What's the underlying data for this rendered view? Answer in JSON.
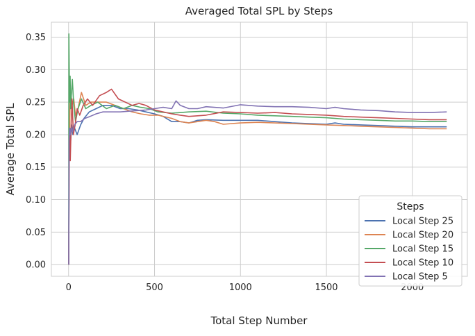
{
  "chart_data": {
    "type": "line",
    "title": "Averaged Total SPL by Steps",
    "xlabel": "Total Step Number",
    "ylabel": "Average Total SPL",
    "xlim": [
      -100,
      2320
    ],
    "ylim": [
      -0.018,
      0.373
    ],
    "xticks": [
      0,
      500,
      1000,
      1500,
      2000
    ],
    "yticks": [
      0.0,
      0.05,
      0.1,
      0.15,
      0.2,
      0.25,
      0.3,
      0.35
    ],
    "xtick_labels": [
      "0",
      "500",
      "1000",
      "1500",
      "2000"
    ],
    "ytick_labels": [
      "0.00",
      "0.05",
      "0.10",
      "0.15",
      "0.20",
      "0.25",
      "0.30",
      "0.35"
    ],
    "grid": true,
    "legend": {
      "title": "Steps",
      "position": "lower-right"
    },
    "series": [
      {
        "name": "Local Step 25",
        "color": "#4c72b0",
        "x": [
          1,
          3,
          5,
          8,
          12,
          18,
          25,
          35,
          50,
          70,
          90,
          120,
          160,
          200,
          250,
          300,
          350,
          400,
          450,
          500,
          550,
          600,
          650,
          700,
          750,
          800,
          900,
          1000,
          1100,
          1200,
          1300,
          1400,
          1500,
          1550,
          1600,
          1700,
          1800,
          1900,
          2000,
          2100,
          2200
        ],
        "y": [
          0.0,
          0.14,
          0.18,
          0.21,
          0.19,
          0.215,
          0.2,
          0.21,
          0.2,
          0.215,
          0.225,
          0.235,
          0.24,
          0.245,
          0.245,
          0.24,
          0.24,
          0.238,
          0.235,
          0.232,
          0.228,
          0.22,
          0.22,
          0.218,
          0.222,
          0.223,
          0.222,
          0.222,
          0.222,
          0.22,
          0.218,
          0.217,
          0.216,
          0.218,
          0.216,
          0.215,
          0.214,
          0.213,
          0.212,
          0.212,
          0.212
        ]
      },
      {
        "name": "Local Step 20",
        "color": "#dd8452",
        "x": [
          1,
          3,
          6,
          10,
          15,
          20,
          30,
          40,
          55,
          75,
          100,
          130,
          170,
          220,
          270,
          320,
          370,
          420,
          470,
          520,
          600,
          650,
          700,
          750,
          800,
          850,
          900,
          1000,
          1100,
          1200,
          1300,
          1400,
          1500,
          1600,
          1700,
          1800,
          1900,
          2000,
          2100,
          2200
        ],
        "y": [
          0.0,
          0.15,
          0.2,
          0.265,
          0.26,
          0.245,
          0.255,
          0.23,
          0.24,
          0.265,
          0.245,
          0.25,
          0.25,
          0.25,
          0.245,
          0.24,
          0.235,
          0.232,
          0.23,
          0.23,
          0.225,
          0.22,
          0.218,
          0.22,
          0.222,
          0.22,
          0.216,
          0.218,
          0.219,
          0.218,
          0.217,
          0.216,
          0.215,
          0.214,
          0.213,
          0.212,
          0.211,
          0.21,
          0.209,
          0.209
        ]
      },
      {
        "name": "Local Step 15",
        "color": "#55a868",
        "x": [
          1,
          2,
          4,
          6,
          9,
          12,
          16,
          22,
          30,
          40,
          55,
          75,
          100,
          130,
          170,
          220,
          270,
          320,
          370,
          420,
          470,
          520,
          600,
          700,
          800,
          900,
          1000,
          1100,
          1200,
          1300,
          1400,
          1500,
          1600,
          1700,
          1800,
          1900,
          2000,
          2100,
          2200
        ],
        "y": [
          0.0,
          0.355,
          0.3,
          0.25,
          0.29,
          0.24,
          0.26,
          0.285,
          0.245,
          0.22,
          0.24,
          0.255,
          0.24,
          0.245,
          0.25,
          0.24,
          0.245,
          0.24,
          0.245,
          0.242,
          0.24,
          0.235,
          0.233,
          0.235,
          0.236,
          0.233,
          0.232,
          0.23,
          0.229,
          0.228,
          0.227,
          0.226,
          0.224,
          0.223,
          0.222,
          0.221,
          0.221,
          0.22,
          0.22
        ]
      },
      {
        "name": "Local Step 10",
        "color": "#c44e52",
        "x": [
          1,
          3,
          6,
          10,
          15,
          20,
          28,
          38,
          50,
          65,
          85,
          110,
          140,
          180,
          220,
          250,
          290,
          330,
          370,
          410,
          450,
          500,
          550,
          600,
          650,
          700,
          800,
          900,
          1000,
          1100,
          1200,
          1300,
          1400,
          1500,
          1600,
          1700,
          1800,
          1900,
          2000,
          2100,
          2200
        ],
        "y": [
          0.0,
          0.14,
          0.2,
          0.16,
          0.215,
          0.255,
          0.2,
          0.215,
          0.24,
          0.23,
          0.245,
          0.255,
          0.245,
          0.26,
          0.265,
          0.27,
          0.255,
          0.25,
          0.245,
          0.248,
          0.245,
          0.238,
          0.235,
          0.232,
          0.23,
          0.228,
          0.23,
          0.235,
          0.234,
          0.233,
          0.234,
          0.232,
          0.231,
          0.23,
          0.228,
          0.227,
          0.226,
          0.225,
          0.224,
          0.223,
          0.223
        ]
      },
      {
        "name": "Local Step 5",
        "color": "#8172b3",
        "x": [
          1,
          3,
          6,
          10,
          16,
          24,
          35,
          50,
          70,
          95,
          125,
          160,
          200,
          250,
          300,
          350,
          400,
          450,
          500,
          550,
          600,
          625,
          650,
          700,
          750,
          800,
          900,
          1000,
          1100,
          1200,
          1300,
          1400,
          1500,
          1550,
          1600,
          1700,
          1800,
          1900,
          2000,
          2100,
          2200
        ],
        "y": [
          0.0,
          0.19,
          0.21,
          0.2,
          0.21,
          0.205,
          0.215,
          0.22,
          0.22,
          0.225,
          0.228,
          0.232,
          0.235,
          0.235,
          0.235,
          0.236,
          0.237,
          0.238,
          0.24,
          0.242,
          0.24,
          0.252,
          0.245,
          0.24,
          0.24,
          0.243,
          0.241,
          0.246,
          0.244,
          0.243,
          0.243,
          0.242,
          0.24,
          0.242,
          0.24,
          0.238,
          0.237,
          0.235,
          0.234,
          0.234,
          0.235
        ]
      }
    ]
  }
}
